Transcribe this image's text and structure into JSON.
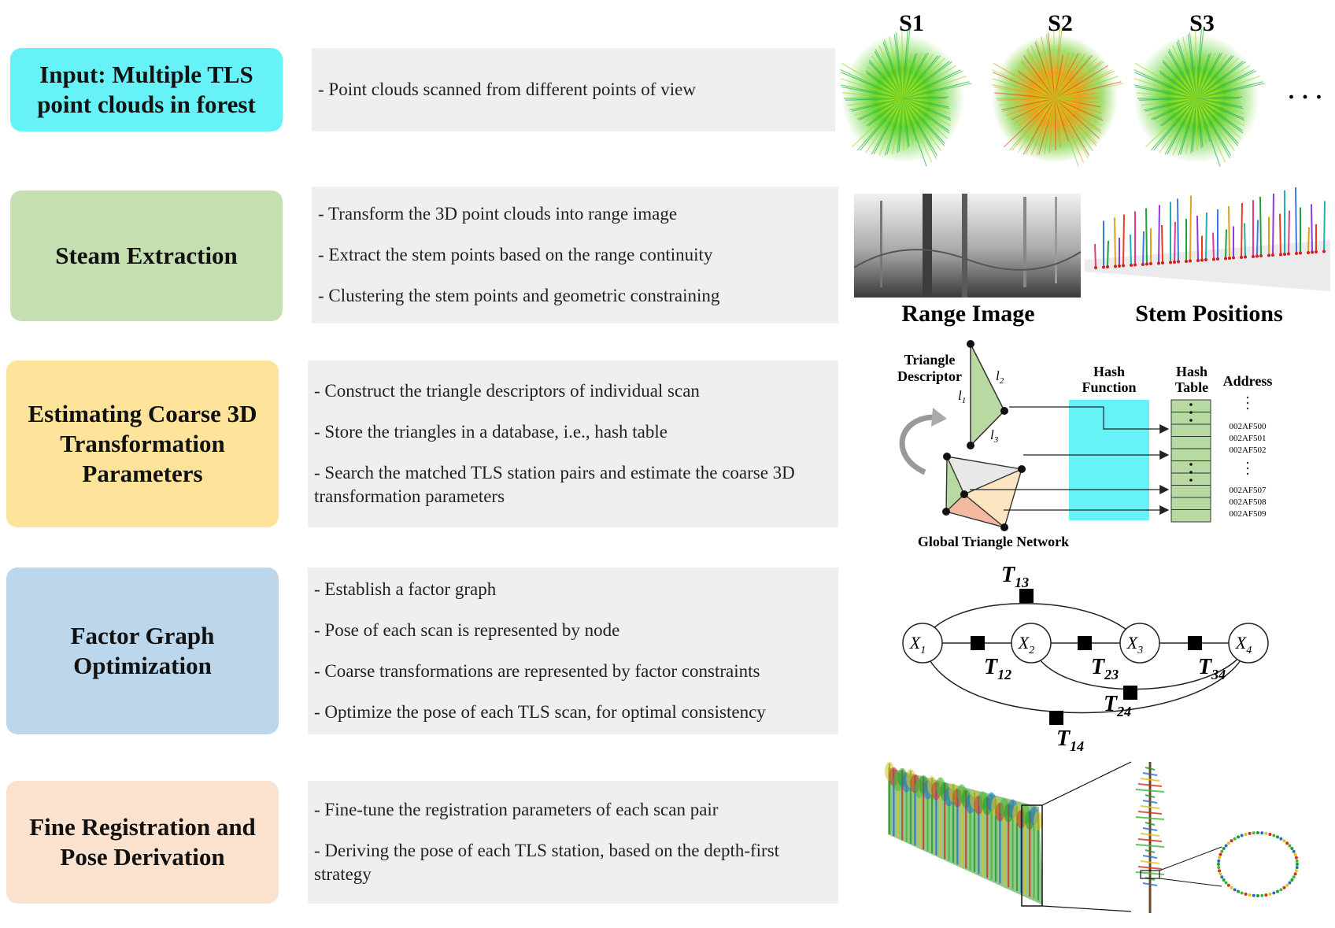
{
  "colors": {
    "cyan": "#66f2f7",
    "green": "#c6dfb1",
    "yellow": "#fde49a",
    "blue": "#bcd6ec",
    "peach": "#fbe2cf",
    "description_bg": "#efefef"
  },
  "stages": [
    {
      "label": "Input: Multiple TLS\npoint clouds in forest",
      "lines": [
        "- Point clouds scanned from different points of view"
      ]
    },
    {
      "label": "Steam Extraction",
      "lines": [
        "- Transform the 3D point clouds into range image",
        "- Extract the stem points based on the range continuity",
        "- Clustering the stem points and geometric constraining"
      ]
    },
    {
      "label": "Estimating Coarse 3D\nTransformation\nParameters",
      "lines": [
        "- Construct the triangle descriptors of individual scan",
        "- Store the triangles in a database, i.e., hash table",
        "- Search the matched TLS station pairs and estimate the coarse 3D transformation parameters"
      ]
    },
    {
      "label": "Factor Graph\nOptimization",
      "lines": [
        "- Establish a factor graph",
        "- Pose of each scan is represented by node",
        "- Coarse transformations are represented by factor constraints",
        "- Optimize the pose of each TLS scan, for optimal consistency"
      ]
    },
    {
      "label": "Fine Registration and\nPose Derivation",
      "lines": [
        "- Fine-tune the registration parameters of each scan pair",
        "- Deriving the pose of each TLS station, based on the depth-first strategy"
      ]
    }
  ],
  "scans": {
    "labels": [
      "S1",
      "S2",
      "S3"
    ],
    "more": "· · ·"
  },
  "stem_figure": {
    "range_image_caption": "Range Image",
    "stem_positions_caption": "Stem Positions"
  },
  "hash_figure": {
    "triangle_descriptor": "Triangle\nDescriptor",
    "side_labels": [
      "l1",
      "l2",
      "l3"
    ],
    "hash_function": "Hash\nFunction",
    "hash_table": "Hash\nTable",
    "address": "Address",
    "addresses_top": [
      "002AF500",
      "002AF501",
      "002AF502"
    ],
    "addresses_bottom": [
      "002AF507",
      "002AF508",
      "002AF509"
    ],
    "network": "Global Triangle Network"
  },
  "factor_graph": {
    "nodes": [
      "X1",
      "X2",
      "X3",
      "X4"
    ],
    "factors": [
      "T13",
      "T12",
      "T23",
      "T34",
      "T24",
      "T14"
    ]
  }
}
